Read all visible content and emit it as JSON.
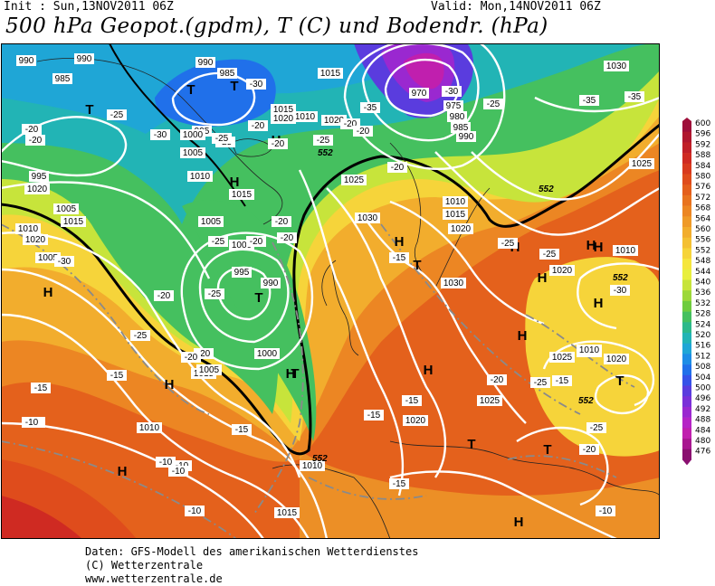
{
  "header": {
    "init": "Init : Sun,13NOV2011 06Z",
    "valid": "Valid: Mon,14NOV2011 06Z",
    "title": "500 hPa Geopot.(gpdm), T (C) und Bodendr. (hPa)"
  },
  "credits": [
    "Daten: GFS-Modell des amerikanischen Wetterdienstes",
    "(C) Wetterzentrale",
    "www.wetterzentrale.de"
  ],
  "legend": {
    "labels": [
      "600",
      "596",
      "592",
      "588",
      "584",
      "580",
      "576",
      "572",
      "568",
      "564",
      "560",
      "556",
      "552",
      "548",
      "544",
      "540",
      "536",
      "532",
      "528",
      "524",
      "520",
      "516",
      "512",
      "508",
      "504",
      "500",
      "496",
      "492",
      "488",
      "484",
      "480",
      "476"
    ],
    "colors": [
      "#9e0f3a",
      "#b0172f",
      "#c01f28",
      "#cf2a22",
      "#d83a1e",
      "#df4c1c",
      "#e45f1c",
      "#e8731f",
      "#ec8623",
      "#ef9a28",
      "#f2ad2d",
      "#f4c033",
      "#f6d43a",
      "#f5e63c",
      "#e8ef3d",
      "#c7e43b",
      "#9cd83a",
      "#6fcc3e",
      "#45c05f",
      "#2db98a",
      "#22b4b5",
      "#1fa6d6",
      "#1d8de6",
      "#2070ea",
      "#3652e8",
      "#5a3cde",
      "#7a30d8",
      "#9a28d0",
      "#b524c6",
      "#c01fae",
      "#a81790",
      "#8a1070"
    ]
  },
  "map": {
    "high_low_centers": [
      "T",
      "T",
      "T",
      "T",
      "T",
      "H",
      "H",
      "H",
      "H",
      "H",
      "H",
      "H",
      "H",
      "H",
      "H",
      "H",
      "H",
      "T",
      "T",
      "T",
      "T",
      "H",
      "H",
      "H"
    ],
    "pressure_labels": [
      "990",
      "990",
      "985",
      "990",
      "985",
      "970",
      "975",
      "980",
      "985",
      "990",
      "995",
      "1015",
      "1010",
      "1020",
      "1015",
      "1020",
      "1020",
      "995",
      "1000",
      "1005",
      "1010",
      "1015",
      "1025",
      "1030",
      "1010",
      "1015",
      "1020",
      "1005",
      "1000",
      "995",
      "990",
      "1005",
      "1005",
      "1010",
      "1015",
      "1020",
      "1030",
      "1030",
      "1020",
      "1025",
      "1010",
      "1020",
      "1025",
      "1020",
      "1010",
      "1015",
      "1010",
      "1000",
      "1005",
      "1015",
      "1025",
      "1010",
      "1020"
    ],
    "temperature_labels": [
      "-30",
      "-30",
      "-35",
      "-35",
      "-30",
      "-25",
      "-25",
      "-20",
      "-25",
      "-20",
      "-25",
      "-20",
      "-20",
      "-25",
      "-20",
      "-20",
      "-20",
      "-20",
      "-25",
      "-20",
      "-30",
      "-25",
      "-20",
      "-25",
      "-25",
      "-15",
      "-25",
      "-20",
      "-15",
      "-10",
      "-15",
      "-10",
      "-10",
      "-15",
      "-15",
      "-15",
      "-15",
      "-20",
      "-15",
      "-10",
      "-10",
      "-20",
      "-25",
      "-30",
      "-35",
      "-20",
      "-20",
      "-25",
      "-10",
      "-10"
    ],
    "geopotential_labels": [
      "552",
      "552",
      "552",
      "552",
      "552"
    ]
  }
}
